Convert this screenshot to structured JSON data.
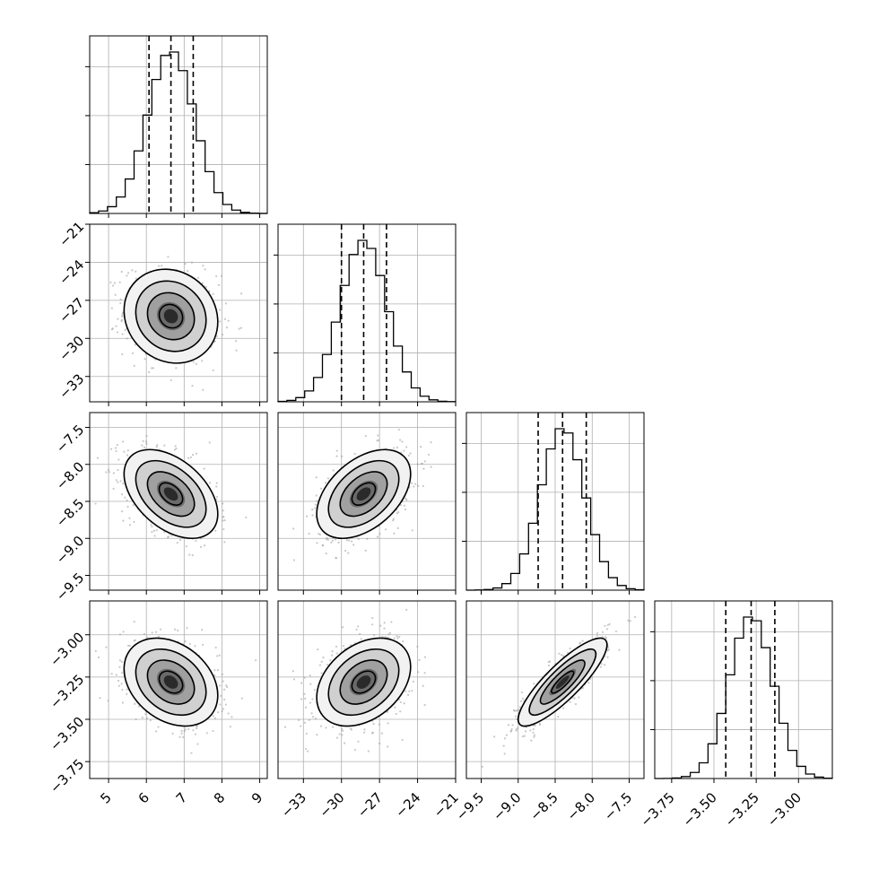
{
  "chart_data": {
    "type": "corner",
    "grid": true,
    "params": [
      {
        "mean": 6.65,
        "sd": 0.62,
        "range": [
          4.5,
          9.2
        ],
        "ticks": [
          5,
          6,
          7,
          8,
          9
        ],
        "tick_labels": [
          "5",
          "6",
          "7",
          "8",
          "9"
        ],
        "quantiles": [
          6.07,
          6.65,
          7.24
        ]
      },
      {
        "mean": -28.25,
        "sd": 1.85,
        "range": [
          -35.0,
          -21.0
        ],
        "ticks": [
          -33,
          -30,
          -27,
          -24,
          -21
        ],
        "tick_labels": [
          "−33",
          "−30",
          "−27",
          "−24",
          "−21"
        ],
        "quantiles": [
          -30.0,
          -28.25,
          -26.45
        ]
      },
      {
        "mean": -8.4,
        "sd": 0.3,
        "range": [
          -9.7,
          -7.3
        ],
        "ticks": [
          -9.5,
          -9.0,
          -8.5,
          -8.0,
          -7.5
        ],
        "tick_labels": [
          "−9.5",
          "−9.0",
          "−8.5",
          "−8.0",
          "−7.5"
        ],
        "quantiles": [
          -8.73,
          -8.4,
          -8.08
        ]
      },
      {
        "mean": -3.28,
        "sd": 0.13,
        "range": [
          -3.85,
          -2.8
        ],
        "ticks": [
          -3.75,
          -3.5,
          -3.25,
          -3.0
        ],
        "tick_labels": [
          "−3.75",
          "−3.50",
          "−3.25",
          "−3.00"
        ],
        "quantiles": [
          -3.43,
          -3.28,
          -3.14
        ]
      }
    ],
    "correlations": [
      [
        1.0,
        -0.12,
        -0.45,
        -0.3
      ],
      [
        -0.12,
        1.0,
        0.45,
        0.35
      ],
      [
        -0.45,
        0.45,
        1.0,
        0.85
      ],
      [
        -0.3,
        0.35,
        0.85,
        1.0
      ]
    ],
    "contour_levels_sigma": [
      0.5,
      1.0,
      1.5,
      2.0
    ],
    "hist_bins": 20
  }
}
